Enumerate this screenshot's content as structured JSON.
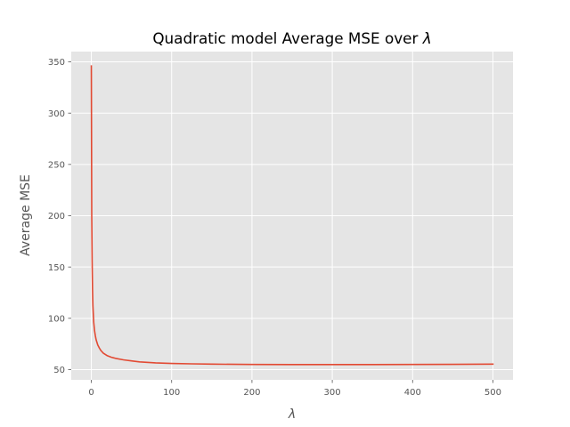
{
  "chart_data": {
    "type": "line",
    "style": "ggplot",
    "title_text": "Quadratic model Average MSE over ",
    "title_symbol": "λ",
    "xlabel": "λ",
    "ylabel": "Average MSE",
    "xlim": [
      -25,
      525
    ],
    "ylim": [
      40,
      360
    ],
    "xticks": [
      0,
      100,
      200,
      300,
      400,
      500
    ],
    "yticks": [
      50,
      100,
      150,
      200,
      250,
      300,
      350
    ],
    "grid": true,
    "line_color": "#E24A33",
    "background_color": "#E5E5E5",
    "series": [
      {
        "x": [
          0,
          0.5,
          1,
          1.5,
          2,
          3,
          4,
          5,
          6,
          8,
          10,
          12,
          15,
          20,
          25,
          30,
          40,
          50,
          60,
          80,
          100,
          125,
          150,
          200,
          250,
          300,
          350,
          400,
          450,
          500
        ],
        "y": [
          346,
          200,
          155,
          128,
          112,
          96,
          88,
          83,
          79,
          74,
          71,
          68.5,
          66,
          63.5,
          62,
          61,
          59.5,
          58.5,
          57.5,
          56.5,
          56,
          55.6,
          55.3,
          55,
          54.9,
          54.9,
          54.9,
          55,
          55.1,
          55.3
        ]
      }
    ]
  }
}
